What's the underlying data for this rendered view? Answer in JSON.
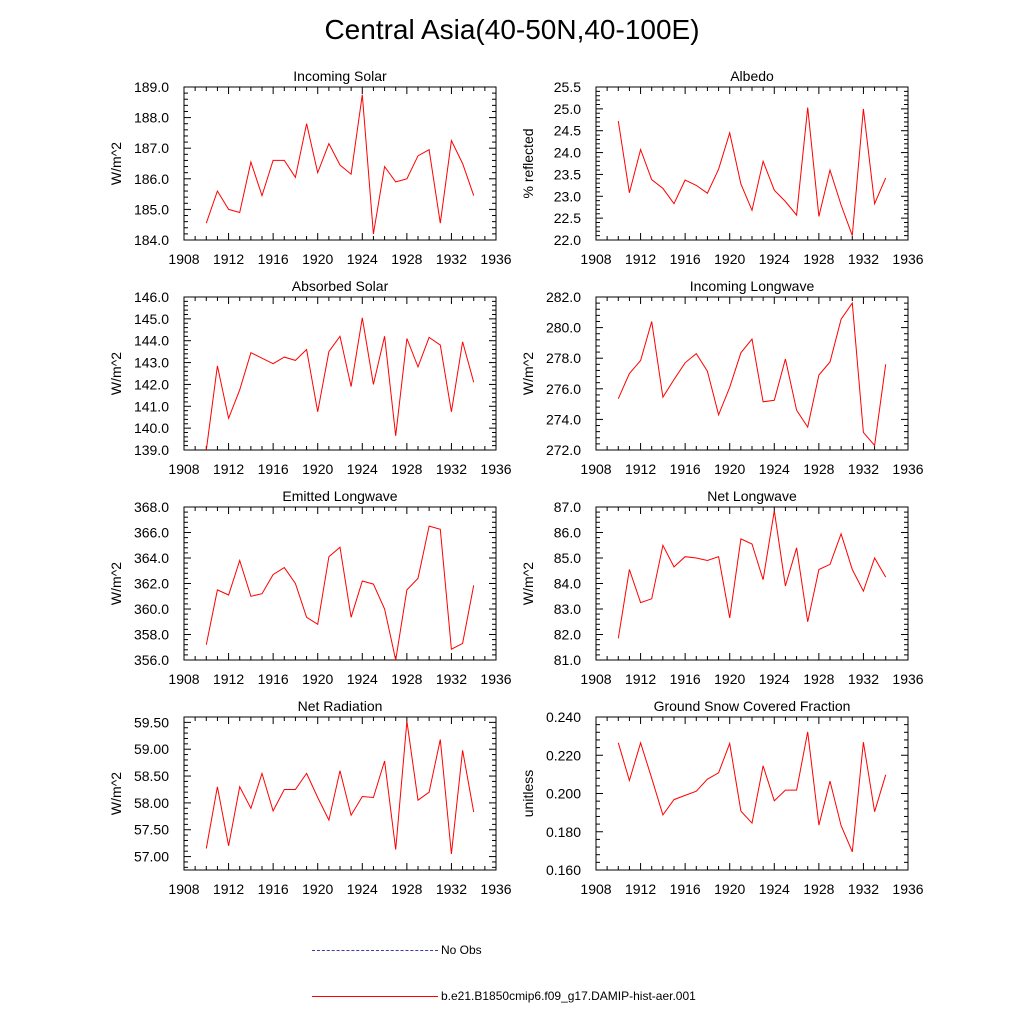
{
  "figure": {
    "title": "Central Asia(40-50N,40-100E)",
    "series_color": "#ff0000",
    "obs_color": "#3a3aa8"
  },
  "legend": {
    "items": [
      {
        "label": "No Obs",
        "style": "dashed"
      },
      {
        "label": "b.e21.B1850cmip6.f09_g17.DAMIP-hist-aer.001",
        "style": "solid"
      }
    ]
  },
  "chart_data": [
    {
      "type": "line",
      "title": "Incoming Solar",
      "ylabel": "W/m^2",
      "xlim": [
        1908,
        1936
      ],
      "ylim": [
        184.0,
        189.0
      ],
      "xticks": [
        "1908",
        "1912",
        "1916",
        "1920",
        "1924",
        "1928",
        "1932",
        "1936"
      ],
      "yticks": [
        "184.0",
        "185.0",
        "186.0",
        "187.0",
        "188.0",
        "189.0"
      ],
      "x": [
        1910,
        1911,
        1912,
        1913,
        1914,
        1915,
        1916,
        1917,
        1918,
        1919,
        1920,
        1921,
        1922,
        1923,
        1924,
        1925,
        1926,
        1927,
        1928,
        1929,
        1930,
        1931,
        1932,
        1933,
        1934
      ],
      "series": [
        {
          "name": "b.e21.B1850cmip6.f09_g17.DAMIP-hist-aer.001",
          "values": [
            184.55,
            185.6,
            185.0,
            184.9,
            186.55,
            185.45,
            186.6,
            186.6,
            186.05,
            187.8,
            186.2,
            187.15,
            186.45,
            186.15,
            188.75,
            184.2,
            186.4,
            185.9,
            186.0,
            186.75,
            186.95,
            184.55,
            187.25,
            186.5,
            185.45
          ]
        }
      ]
    },
    {
      "type": "line",
      "title": "Albedo",
      "ylabel": "% reflected",
      "xlim": [
        1908,
        1936
      ],
      "ylim": [
        22.0,
        25.5
      ],
      "xticks": [
        "1908",
        "1912",
        "1916",
        "1920",
        "1924",
        "1928",
        "1932",
        "1936"
      ],
      "yticks": [
        "22.0",
        "22.5",
        "23.0",
        "23.5",
        "24.0",
        "24.5",
        "25.0",
        "25.5"
      ],
      "x": [
        1910,
        1911,
        1912,
        1913,
        1914,
        1915,
        1916,
        1917,
        1918,
        1919,
        1920,
        1921,
        1922,
        1923,
        1924,
        1925,
        1926,
        1927,
        1928,
        1929,
        1930,
        1931,
        1932,
        1933,
        1934
      ],
      "series": [
        {
          "name": "b.e21.B1850cmip6.f09_g17.DAMIP-hist-aer.001",
          "values": [
            24.72,
            23.08,
            24.07,
            23.38,
            23.18,
            22.83,
            23.37,
            23.25,
            23.07,
            23.62,
            24.45,
            23.28,
            22.68,
            23.8,
            23.14,
            22.88,
            22.57,
            25.03,
            22.54,
            23.6,
            22.8,
            22.1,
            25.0,
            22.83,
            23.42
          ]
        }
      ]
    },
    {
      "type": "line",
      "title": "Absorbed Solar",
      "ylabel": "W/m^2",
      "xlim": [
        1908,
        1936
      ],
      "ylim": [
        139.0,
        146.0
      ],
      "xticks": [
        "1908",
        "1912",
        "1916",
        "1920",
        "1924",
        "1928",
        "1932",
        "1936"
      ],
      "yticks": [
        "139.0",
        "140.0",
        "141.0",
        "142.0",
        "143.0",
        "144.0",
        "145.0",
        "146.0"
      ],
      "x": [
        1910,
        1911,
        1912,
        1913,
        1914,
        1915,
        1916,
        1917,
        1918,
        1919,
        1920,
        1921,
        1922,
        1923,
        1924,
        1925,
        1926,
        1927,
        1928,
        1929,
        1930,
        1931,
        1932,
        1933,
        1934
      ],
      "series": [
        {
          "name": "b.e21.B1850cmip6.f09_g17.DAMIP-hist-aer.001",
          "values": [
            139.0,
            142.85,
            140.45,
            141.75,
            143.45,
            143.2,
            142.95,
            143.25,
            143.1,
            143.6,
            140.75,
            143.5,
            144.2,
            141.9,
            145.05,
            142.0,
            144.2,
            139.65,
            144.1,
            142.8,
            144.15,
            143.8,
            140.75,
            143.95,
            142.1
          ]
        }
      ]
    },
    {
      "type": "line",
      "title": "Incoming Longwave",
      "ylabel": "W/m^2",
      "xlim": [
        1908,
        1936
      ],
      "ylim": [
        272.0,
        282.0
      ],
      "xticks": [
        "1908",
        "1912",
        "1916",
        "1920",
        "1924",
        "1928",
        "1932",
        "1936"
      ],
      "yticks": [
        "272.0",
        "274.0",
        "276.0",
        "278.0",
        "280.0",
        "282.0"
      ],
      "x": [
        1910,
        1911,
        1912,
        1913,
        1914,
        1915,
        1916,
        1917,
        1918,
        1919,
        1920,
        1921,
        1922,
        1923,
        1924,
        1925,
        1926,
        1927,
        1928,
        1929,
        1930,
        1931,
        1932,
        1933,
        1934
      ],
      "series": [
        {
          "name": "b.e21.B1850cmip6.f09_g17.DAMIP-hist-aer.001",
          "values": [
            275.35,
            277.0,
            277.85,
            280.4,
            275.45,
            276.6,
            277.7,
            278.3,
            277.15,
            274.3,
            276.1,
            278.35,
            279.25,
            275.15,
            275.25,
            277.95,
            274.6,
            273.5,
            276.9,
            277.75,
            280.55,
            281.6,
            273.15,
            272.3,
            277.6
          ]
        }
      ]
    },
    {
      "type": "line",
      "title": "Emitted Longwave",
      "ylabel": "W/m^2",
      "xlim": [
        1908,
        1936
      ],
      "ylim": [
        356.0,
        368.0
      ],
      "xticks": [
        "1908",
        "1912",
        "1916",
        "1920",
        "1924",
        "1928",
        "1932",
        "1936"
      ],
      "yticks": [
        "356.0",
        "358.0",
        "360.0",
        "362.0",
        "364.0",
        "366.0",
        "368.0"
      ],
      "x": [
        1910,
        1911,
        1912,
        1913,
        1914,
        1915,
        1916,
        1917,
        1918,
        1919,
        1920,
        1921,
        1922,
        1923,
        1924,
        1925,
        1926,
        1927,
        1928,
        1929,
        1930,
        1931,
        1932,
        1933,
        1934
      ],
      "series": [
        {
          "name": "b.e21.B1850cmip6.f09_g17.DAMIP-hist-aer.001",
          "values": [
            357.2,
            361.5,
            361.1,
            363.8,
            361.0,
            361.2,
            362.7,
            363.25,
            362.0,
            359.35,
            358.8,
            364.1,
            364.85,
            359.35,
            362.2,
            361.95,
            360.0,
            356.0,
            361.5,
            362.4,
            366.5,
            366.25,
            356.85,
            357.3,
            361.85
          ]
        }
      ]
    },
    {
      "type": "line",
      "title": "Net Longwave",
      "ylabel": "W/m^2",
      "xlim": [
        1908,
        1936
      ],
      "ylim": [
        81.0,
        87.0
      ],
      "xticks": [
        "1908",
        "1912",
        "1916",
        "1920",
        "1924",
        "1928",
        "1932",
        "1936"
      ],
      "yticks": [
        "81.0",
        "82.0",
        "83.0",
        "84.0",
        "85.0",
        "86.0",
        "87.0"
      ],
      "x": [
        1910,
        1911,
        1912,
        1913,
        1914,
        1915,
        1916,
        1917,
        1918,
        1919,
        1920,
        1921,
        1922,
        1923,
        1924,
        1925,
        1926,
        1927,
        1928,
        1929,
        1930,
        1931,
        1932,
        1933,
        1934
      ],
      "series": [
        {
          "name": "b.e21.B1850cmip6.f09_g17.DAMIP-hist-aer.001",
          "values": [
            81.85,
            84.55,
            83.25,
            83.4,
            85.5,
            84.65,
            85.05,
            85.0,
            84.9,
            85.05,
            82.65,
            85.75,
            85.55,
            84.15,
            86.85,
            83.9,
            85.4,
            82.5,
            84.55,
            84.75,
            85.95,
            84.55,
            83.7,
            85.0,
            84.25
          ]
        }
      ]
    },
    {
      "type": "line",
      "title": "Net Radiation",
      "ylabel": "W/m^2",
      "xlim": [
        1908,
        1936
      ],
      "ylim": [
        56.75,
        59.6
      ],
      "xticks": [
        "1908",
        "1912",
        "1916",
        "1920",
        "1924",
        "1928",
        "1932",
        "1936"
      ],
      "yticks": [
        "57.00",
        "57.50",
        "58.00",
        "58.50",
        "59.00",
        "59.50"
      ],
      "x": [
        1910,
        1911,
        1912,
        1913,
        1914,
        1915,
        1916,
        1917,
        1918,
        1919,
        1920,
        1921,
        1922,
        1923,
        1924,
        1925,
        1926,
        1927,
        1928,
        1929,
        1930,
        1931,
        1932,
        1933,
        1934
      ],
      "series": [
        {
          "name": "b.e21.B1850cmip6.f09_g17.DAMIP-hist-aer.001",
          "values": [
            57.15,
            58.3,
            57.2,
            58.3,
            57.9,
            58.55,
            57.85,
            58.25,
            58.25,
            58.55,
            58.1,
            57.68,
            58.6,
            57.77,
            58.12,
            58.1,
            58.78,
            57.13,
            59.52,
            58.05,
            58.2,
            59.18,
            57.05,
            58.98,
            57.83
          ]
        }
      ]
    },
    {
      "type": "line",
      "title": "Ground Snow Covered Fraction",
      "ylabel": "unitless",
      "xlim": [
        1908,
        1936
      ],
      "ylim": [
        0.16,
        0.24
      ],
      "xticks": [
        "1908",
        "1912",
        "1916",
        "1920",
        "1924",
        "1928",
        "1932",
        "1936"
      ],
      "yticks": [
        "0.160",
        "0.180",
        "0.200",
        "0.220",
        "0.240"
      ],
      "x": [
        1910,
        1911,
        1912,
        1913,
        1914,
        1915,
        1916,
        1917,
        1918,
        1919,
        1920,
        1921,
        1922,
        1923,
        1924,
        1925,
        1926,
        1927,
        1928,
        1929,
        1930,
        1931,
        1932,
        1933,
        1934
      ],
      "series": [
        {
          "name": "b.e21.B1850cmip6.f09_g17.DAMIP-hist-aer.001",
          "values": [
            0.2265,
            0.2068,
            0.2265,
            0.208,
            0.1888,
            0.1968,
            0.199,
            0.2012,
            0.2075,
            0.2108,
            0.2262,
            0.1908,
            0.1845,
            0.2145,
            0.1962,
            0.2018,
            0.2018,
            0.2322,
            0.1835,
            0.2065,
            0.1832,
            0.1695,
            0.2268,
            0.1905,
            0.2098
          ]
        }
      ]
    }
  ]
}
